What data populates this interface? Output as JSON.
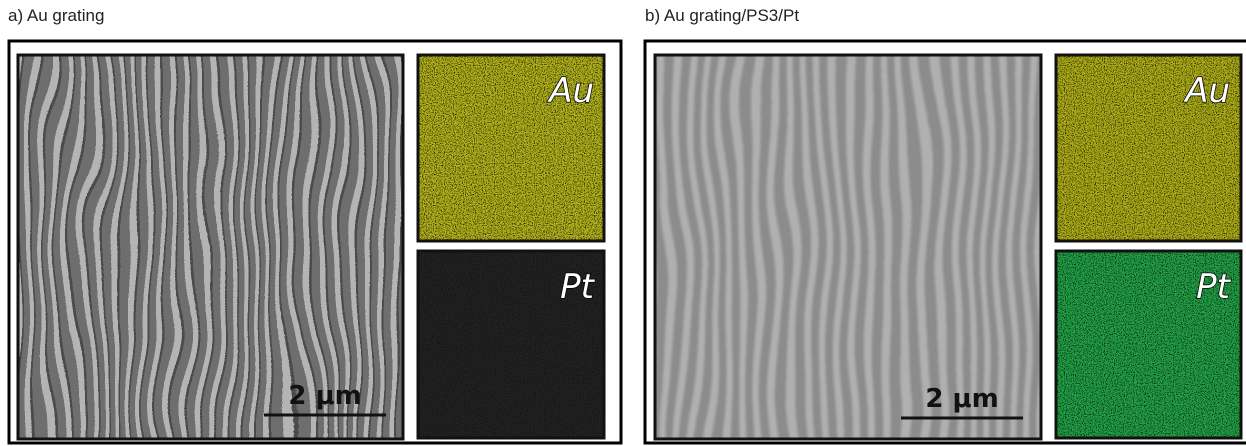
{
  "panels": [
    {
      "title": "a) Au grating",
      "scale_bar": "2 μm",
      "maps": [
        {
          "label": "Au"
        },
        {
          "label": "Pt"
        }
      ]
    },
    {
      "title": "b) Au grating/PS3/Pt",
      "scale_bar": "2 μm",
      "maps": [
        {
          "label": "Au"
        },
        {
          "label": "Pt"
        }
      ]
    }
  ]
}
